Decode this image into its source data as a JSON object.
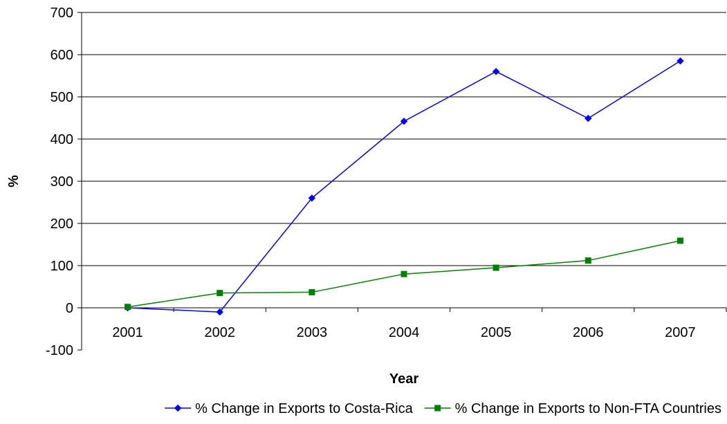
{
  "chart_data": {
    "type": "line",
    "title": "",
    "xlabel": "Year",
    "ylabel": "%",
    "categories": [
      "2001",
      "2002",
      "2003",
      "2004",
      "2005",
      "2006",
      "2007"
    ],
    "ylim": [
      -100,
      700
    ],
    "yticks": [
      -100,
      0,
      100,
      200,
      300,
      400,
      500,
      600,
      700
    ],
    "grid": true,
    "legend_position": "bottom",
    "series": [
      {
        "name": "% Change in Exports to Costa-Rica",
        "color": "#0000ff",
        "marker": "diamond",
        "values": [
          0,
          -10,
          260,
          442,
          560,
          449,
          585
        ]
      },
      {
        "name": "% Change in Exports to Non-FTA Countries",
        "color": "#008000",
        "marker": "square",
        "values": [
          2,
          35,
          37,
          80,
          95,
          112,
          159
        ]
      }
    ]
  }
}
